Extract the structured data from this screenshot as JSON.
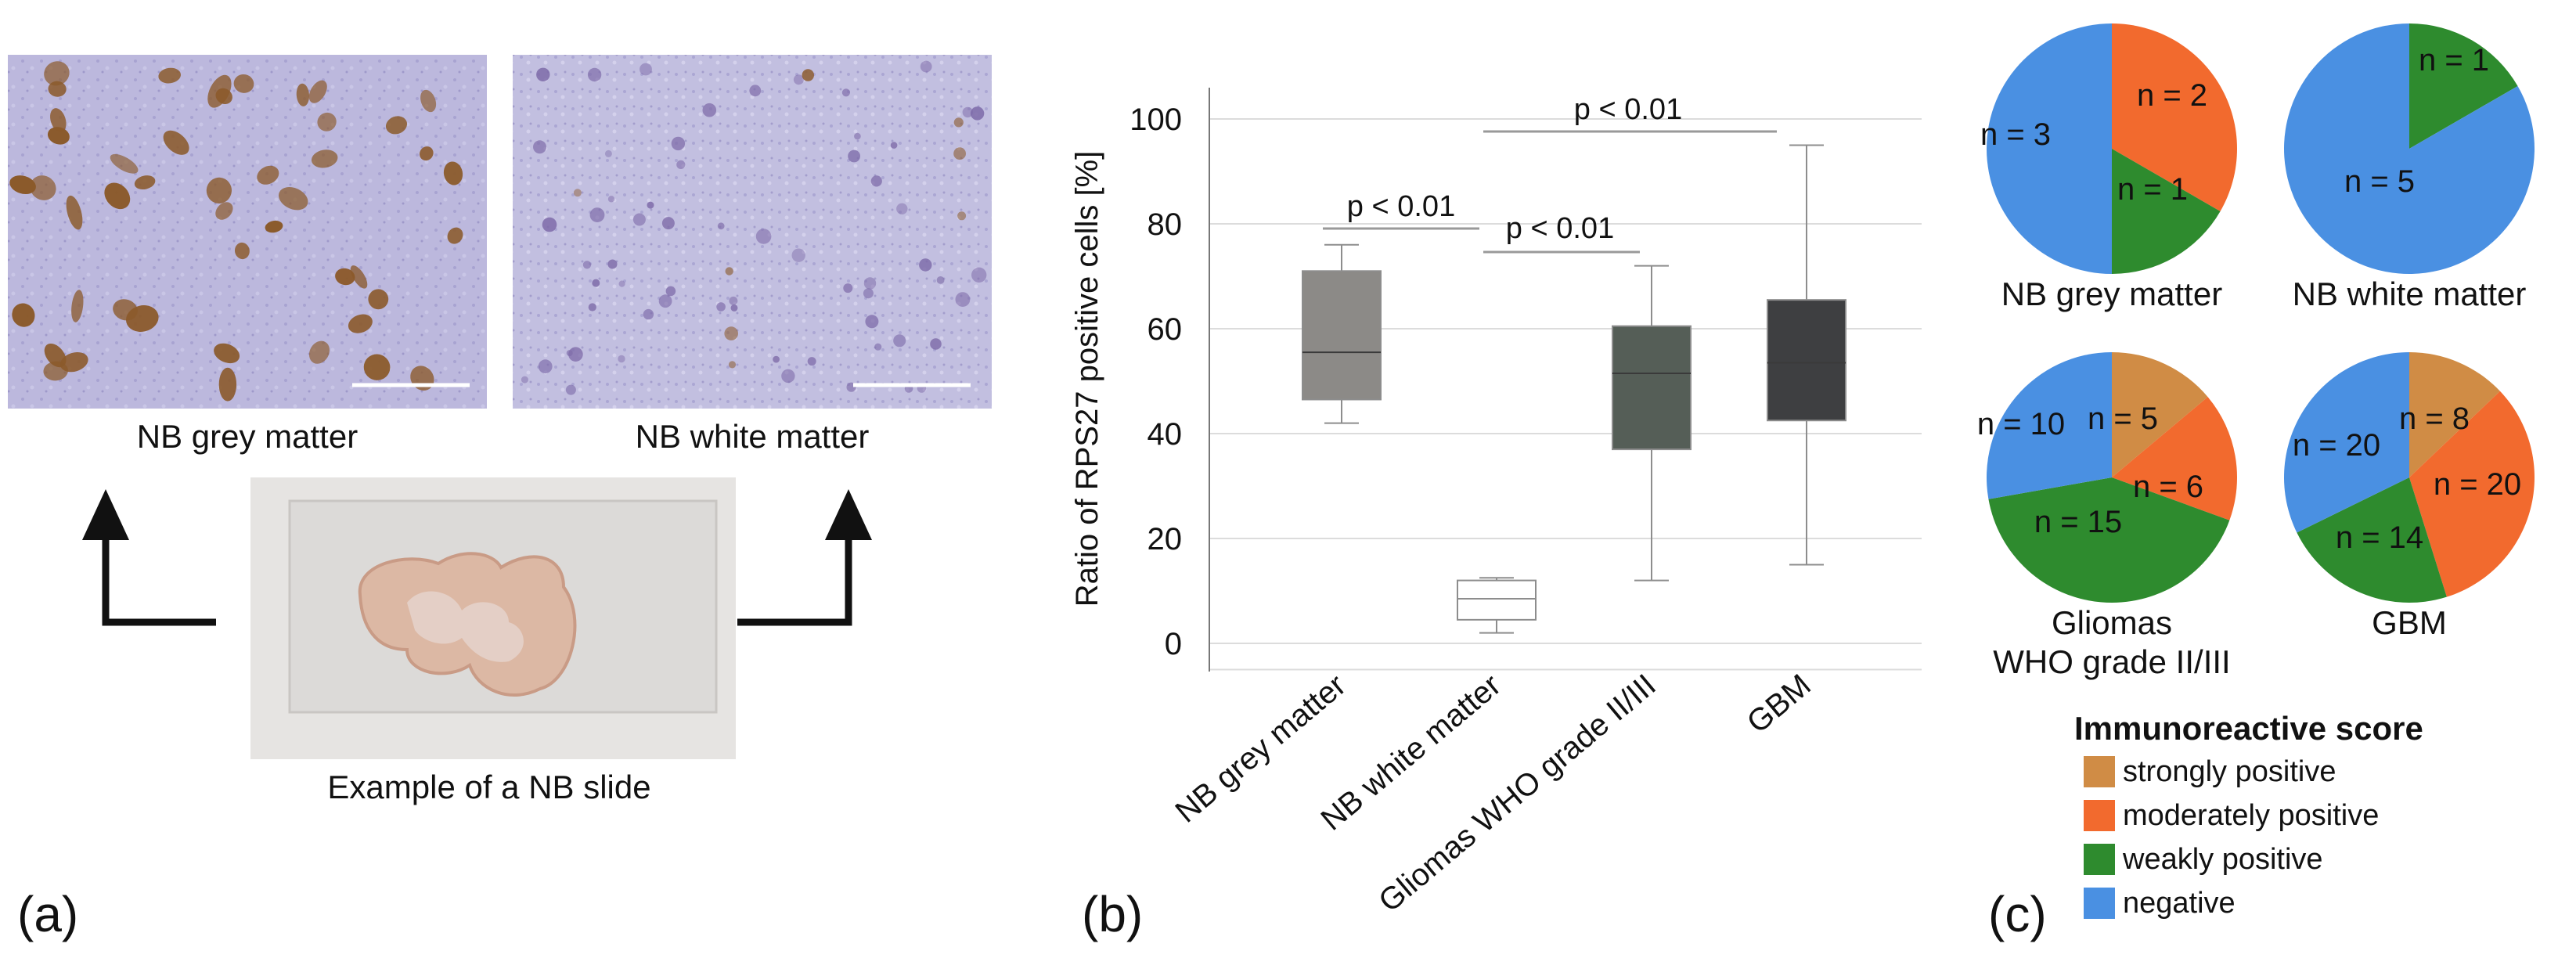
{
  "panel_a": {
    "label": "(a)",
    "image_left_caption": "NB grey matter",
    "image_right_caption": "NB white matter",
    "slide_caption": "Example of a NB slide",
    "colors": {
      "stain_background": "#b9b6dc",
      "stain_cell": "#8b5a2b",
      "slide": "#e8e6e4"
    }
  },
  "panel_b": {
    "label": "(b)",
    "significance": [
      "p < 0.01",
      "p < 0.01",
      "p < 0.01"
    ]
  },
  "panel_c": {
    "label": "(c)",
    "legend_title": "Immunoreactive score",
    "legend_items": [
      {
        "label": "strongly positive",
        "color": "#d08c45"
      },
      {
        "label": "moderately positive",
        "color": "#f26a2e"
      },
      {
        "label": "weakly positive",
        "color": "#2e8b2e"
      },
      {
        "label": "negative",
        "color": "#4a90e2"
      }
    ]
  },
  "chart_data": [
    {
      "type": "box",
      "title": "",
      "ylabel": "Ratio of RPS27 positive cells [%]",
      "xlabel": "",
      "ylim": [
        -5,
        105
      ],
      "yticks": [
        0,
        20,
        40,
        60,
        80,
        100
      ],
      "grid": true,
      "categories": [
        "NB grey matter",
        "NB white matter",
        "Gliomas WHO grade II/III",
        "GBM"
      ],
      "series": [
        {
          "name": "NB grey matter",
          "min": 42,
          "q1": 46.5,
          "median": 55.5,
          "q3": 71,
          "max": 76,
          "color": "#8c8a87"
        },
        {
          "name": "NB white matter",
          "min": 2,
          "q1": 4.5,
          "median": 8.5,
          "q3": 12,
          "max": 12.5,
          "color": "#ffffff"
        },
        {
          "name": "Gliomas WHO grade II/III",
          "min": 12,
          "q1": 37,
          "median": 51.5,
          "q3": 60.5,
          "max": 72,
          "color": "#555e57"
        },
        {
          "name": "GBM",
          "min": 15,
          "q1": 42.5,
          "median": 53.5,
          "q3": 65.5,
          "max": 95,
          "color": "#3e3f41"
        }
      ]
    },
    {
      "type": "pie",
      "title": "NB grey matter",
      "slices": [
        {
          "label": "moderately positive",
          "text": "n = 2",
          "value": 2,
          "color": "#f26a2e"
        },
        {
          "label": "weakly positive",
          "text": "n = 1",
          "value": 1,
          "color": "#2e8b2e"
        },
        {
          "label": "negative",
          "text": "n = 3",
          "value": 3,
          "color": "#4a90e2"
        }
      ]
    },
    {
      "type": "pie",
      "title": "NB white matter",
      "slices": [
        {
          "label": "weakly positive",
          "text": "n = 1",
          "value": 1,
          "color": "#2e8b2e"
        },
        {
          "label": "negative",
          "text": "n = 5",
          "value": 5,
          "color": "#4a90e2"
        }
      ]
    },
    {
      "type": "pie",
      "title": "Gliomas\nWHO grade II/III",
      "title_lines": [
        "Gliomas",
        "WHO grade II/III"
      ],
      "slices": [
        {
          "label": "strongly positive",
          "text": "n = 5",
          "value": 5,
          "color": "#d08c45"
        },
        {
          "label": "moderately positive",
          "text": "n = 6",
          "value": 6,
          "color": "#f26a2e"
        },
        {
          "label": "weakly positive",
          "text": "n = 15",
          "value": 15,
          "color": "#2e8b2e"
        },
        {
          "label": "negative",
          "text": "n = 10",
          "value": 10,
          "color": "#4a90e2"
        }
      ]
    },
    {
      "type": "pie",
      "title": "GBM",
      "slices": [
        {
          "label": "strongly positive",
          "text": "n = 8",
          "value": 8,
          "color": "#d08c45"
        },
        {
          "label": "moderately positive",
          "text": "n = 20",
          "value": 20,
          "color": "#f26a2e"
        },
        {
          "label": "weakly positive",
          "text": "n = 14",
          "value": 14,
          "color": "#2e8b2e"
        },
        {
          "label": "negative",
          "text": "n = 20",
          "value": 20,
          "color": "#4a90e2"
        }
      ]
    }
  ]
}
